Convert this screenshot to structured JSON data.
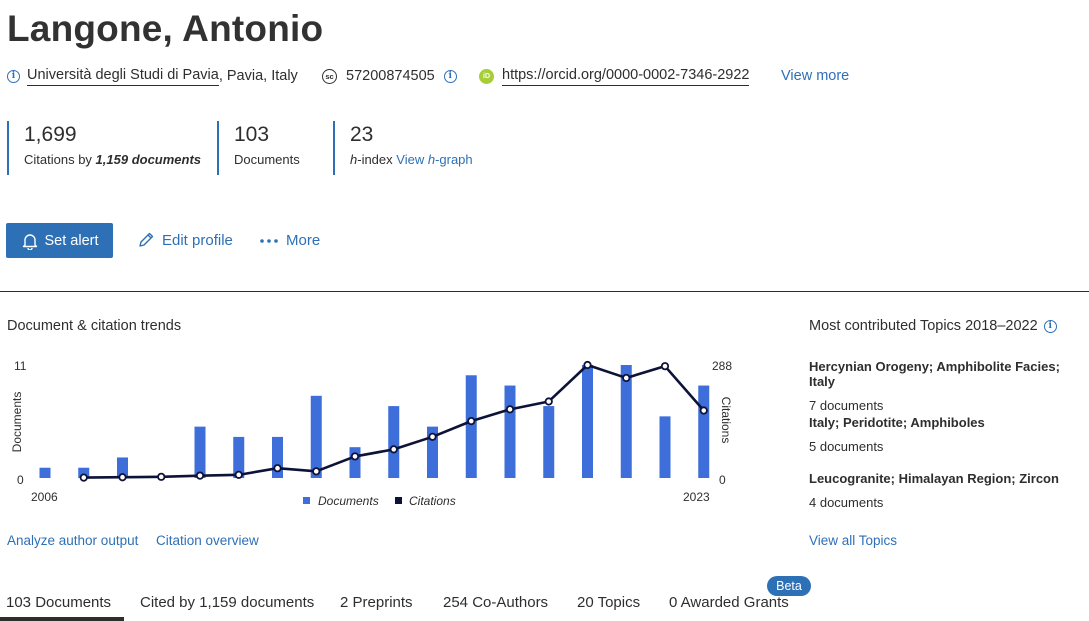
{
  "author": {
    "name": "Langone, Antonio",
    "affiliation": "Università degli Studi di Pavia",
    "location": ", Pavia, Italy",
    "scopus_id": "57200874505",
    "orcid_url": "https://orcid.org/0000-0002-7346-2922",
    "view_more": "View more"
  },
  "metrics": {
    "citations": {
      "value": "1,699",
      "label_prefix": "Citations by ",
      "label_bold": "1,159 documents"
    },
    "documents": {
      "value": "103",
      "label": "Documents"
    },
    "h_index": {
      "value": "23",
      "label_prefix": "h",
      "label_suffix": "-index ",
      "link_prefix": "View ",
      "link_italic": "h",
      "link_suffix": "-graph"
    }
  },
  "actions": {
    "set_alert": "Set alert",
    "edit_profile": "Edit profile",
    "more": "More"
  },
  "trends": {
    "title": "Document & citation trends",
    "analyze_link": "Analyze author output",
    "overview_link": "Citation overview"
  },
  "chart_data": {
    "type": "bar+line",
    "x": [
      "2006",
      "2007",
      "2008",
      "2009",
      "2010",
      "2011",
      "2012",
      "2013",
      "2014",
      "2015",
      "2016",
      "2017",
      "2018",
      "2019",
      "2020",
      "2021",
      "2022",
      "2023"
    ],
    "x_tick_labels": [
      "2006",
      "2023"
    ],
    "series": [
      {
        "name": "Documents",
        "type": "bar",
        "axis": "left",
        "color": "#3d6ed9",
        "values": [
          1,
          1,
          2,
          0,
          5,
          4,
          4,
          8,
          3,
          7,
          5,
          10,
          9,
          7,
          11,
          11,
          6,
          9
        ]
      },
      {
        "name": "Citations",
        "type": "line",
        "axis": "right",
        "color": "#0d1238",
        "values": [
          null,
          1,
          2,
          3,
          6,
          8,
          25,
          17,
          55,
          73,
          105,
          145,
          175,
          195,
          288,
          255,
          285,
          172
        ]
      }
    ],
    "ylabel": "Documents",
    "y2label": "Citations",
    "ylim": [
      0,
      11
    ],
    "y2lim": [
      0,
      288
    ],
    "y_ticks": [
      "0",
      "11"
    ],
    "y2_ticks": [
      "0",
      "288"
    ],
    "grid": false,
    "legend": "bottom-center"
  },
  "topics": {
    "title": "Most contributed Topics 2018–2022",
    "items": [
      {
        "name": "Hercynian Orogeny; Amphibolite Facies; Italy",
        "docs": "7 documents"
      },
      {
        "name": "Italy; Peridotite; Amphiboles",
        "docs": "5 documents"
      },
      {
        "name": "Leucogranite; Himalayan Region; Zircon",
        "docs": "4 documents"
      }
    ],
    "view_all": "View all Topics"
  },
  "tabs": [
    {
      "label": "103 Documents",
      "active": true
    },
    {
      "label": "Cited by 1,159 documents",
      "active": false
    },
    {
      "label": "2 Preprints",
      "active": false
    },
    {
      "label": "254 Co-Authors",
      "active": false
    },
    {
      "label": "20 Topics",
      "active": false
    },
    {
      "label": "0 Awarded Grants",
      "active": false
    }
  ],
  "beta_badge": "Beta"
}
